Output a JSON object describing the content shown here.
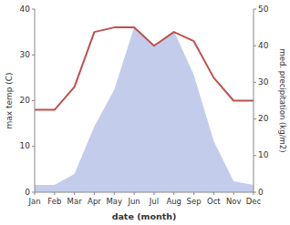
{
  "chart_data": {
    "type": "line",
    "xlabel": "date (month)",
    "ylabel": "max temp (C)",
    "y2label": "med. precipitation (kg/m2)",
    "categories": [
      "Jan",
      "Feb",
      "Mar",
      "Apr",
      "May",
      "Jun",
      "Jul",
      "Aug",
      "Sep",
      "Oct",
      "Nov",
      "Dec"
    ],
    "series": [
      {
        "type": "area",
        "axis": "y2",
        "color": "#b8c4e8",
        "values": [
          2,
          2,
          5,
          18,
          28,
          45,
          40,
          44,
          32,
          14,
          3,
          2
        ]
      },
      {
        "type": "line",
        "color": "#c0504d",
        "values": [
          18,
          18,
          23,
          35,
          36,
          36,
          32,
          35,
          33,
          25,
          20,
          20
        ]
      }
    ],
    "ylim": [
      0,
      40
    ],
    "yticks": [
      0,
      10,
      20,
      30,
      40
    ],
    "y2lim": [
      0,
      50
    ],
    "y2ticks": [
      0,
      10,
      20,
      30,
      40,
      50
    ],
    "grid": false
  }
}
